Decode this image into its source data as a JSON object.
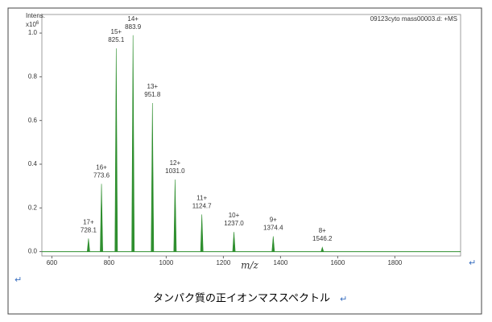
{
  "chart_data": {
    "type": "stem",
    "y_axis_label": "Intens.",
    "y_scale": "x10",
    "y_exponent": "6",
    "header": "09123cyto mass00003.d: +MS",
    "x_axis_label": "m/z",
    "color": "#2f8f2f",
    "x": [
      728.1,
      773.6,
      825.1,
      883.9,
      951.8,
      1031.0,
      1124.7,
      1237.0,
      1374.4,
      1546.2
    ],
    "value_labels_x": [
      "728.1",
      "773.6",
      "825.1",
      "883.9",
      "951.8",
      "1031.0",
      "1124.7",
      "1237.0",
      "1374.4",
      "1546.2"
    ],
    "charge_labels": [
      "17+",
      "16+",
      "15+",
      "14+",
      "13+",
      "12+",
      "11+",
      "10+",
      "9+",
      "8+"
    ],
    "values": [
      0.06,
      0.31,
      0.93,
      0.99,
      0.68,
      0.33,
      0.17,
      0.09,
      0.07,
      0.02
    ],
    "xlim": [
      565,
      2030
    ],
    "ylim": [
      -0.02,
      1.085
    ],
    "xticks": [
      600,
      800,
      1000,
      1200,
      1400,
      1600,
      1800
    ],
    "yticks": [
      {
        "value": 0,
        "label": "0.0"
      },
      0.2,
      0.4,
      0.6,
      0.8,
      {
        "value": 1,
        "label": "1.0"
      }
    ]
  },
  "caption": "タンパク質の正イオンマススペクトル",
  "paragraph_marks": [
    "↵",
    "↵",
    "↵"
  ]
}
